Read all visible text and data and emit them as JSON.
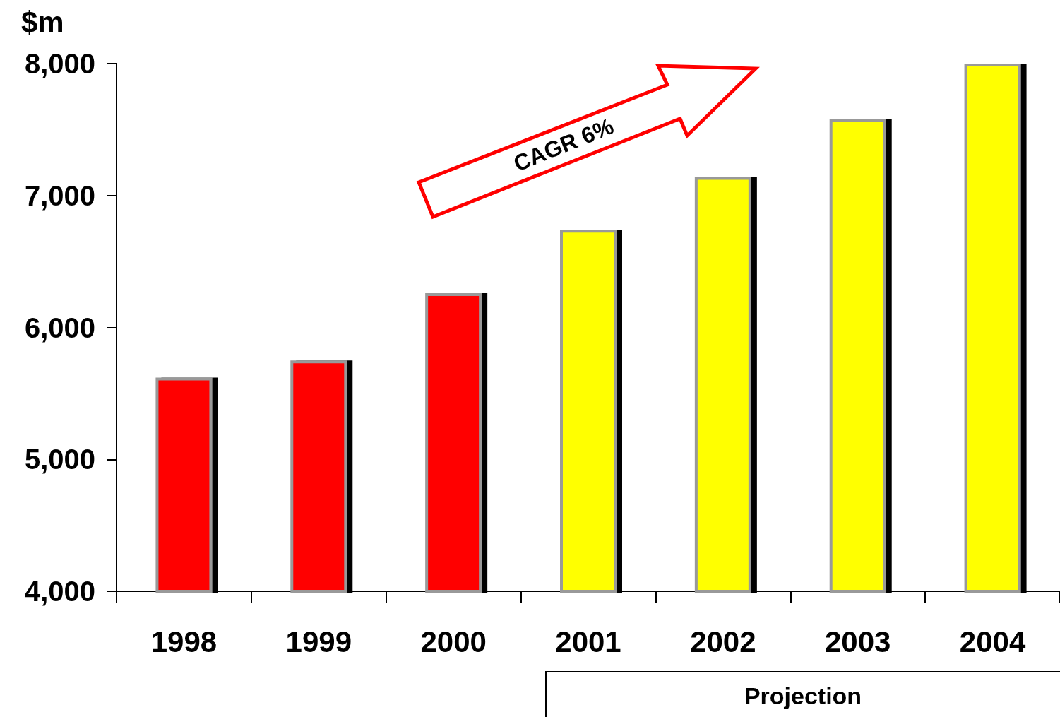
{
  "chart_data": {
    "type": "bar",
    "ylabel": "$m",
    "categories": [
      "1998",
      "1999",
      "2000",
      "2001",
      "2002",
      "2003",
      "2004"
    ],
    "values": [
      5620,
      5750,
      6260,
      6740,
      7140,
      7580,
      8000
    ],
    "colors": [
      "#ff0000",
      "#ff0000",
      "#ff0000",
      "#ffff00",
      "#ffff00",
      "#ffff00",
      "#ffff00"
    ],
    "ylim": [
      4000,
      8000
    ],
    "yticks": [
      {
        "value": 4000,
        "label": "4,000"
      },
      {
        "value": 5000,
        "label": "5,000"
      },
      {
        "value": 6000,
        "label": "6,000"
      },
      {
        "value": 7000,
        "label": "7,000"
      },
      {
        "value": 8000,
        "label": "8,000"
      }
    ],
    "grid": false,
    "annotations": [
      "CAGR 6%",
      "Projection"
    ]
  }
}
